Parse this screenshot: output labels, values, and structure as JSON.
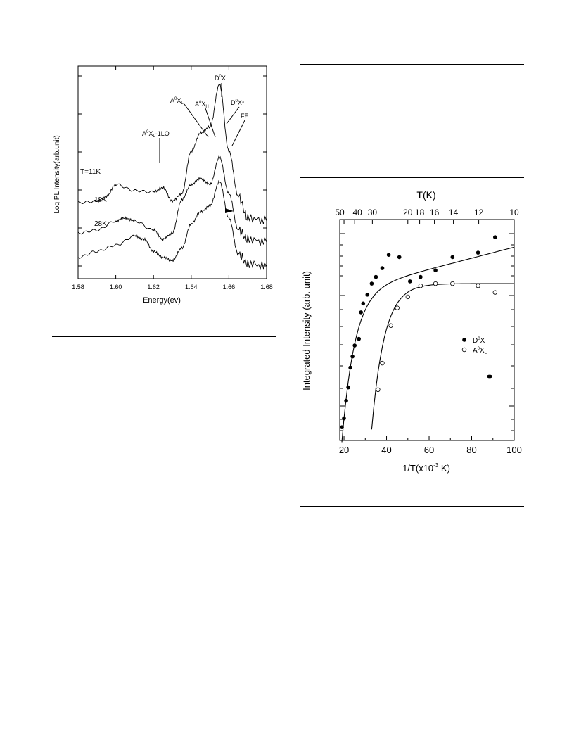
{
  "figure_left": {
    "ylabel": "Log PL Intensity(arb.unit)",
    "xlabel": "Energy(ev)",
    "xticks": [
      "1.58",
      "1.60",
      "1.62",
      "1.64",
      "1.66",
      "1.68"
    ],
    "peak_labels": [
      "D",
      "X",
      "0",
      "A",
      "X",
      "0",
      "L",
      "A",
      "X",
      "0",
      "H",
      "D",
      "X*",
      "0",
      "FE",
      "A",
      "X",
      "0",
      "L",
      "-1LO"
    ],
    "curve_labels": [
      "T=11K",
      "18K",
      "28K"
    ]
  },
  "figure_right": {
    "top_axis_label": "T(K)",
    "top_ticks": [
      "50",
      "40",
      "30",
      "20",
      "18",
      "16",
      "14",
      "12",
      "10"
    ],
    "ylabel": "Integrated Intensity (arb. unit)",
    "xlabel": "1/T(x10",
    "xlabel_sup": "-3",
    "xlabel_unit": " K)",
    "xticks": [
      "20",
      "40",
      "60",
      "80",
      "100"
    ],
    "legend": [
      {
        "symbol": "filled-circle",
        "label_main": "D",
        "label_sup": "0",
        "label_tail": "X"
      },
      {
        "symbol": "open-circle",
        "label_main": "A",
        "label_sup": "0",
        "label_tail": "X",
        "label_sub": "L"
      }
    ]
  },
  "chart_data": [
    {
      "type": "line",
      "title": "",
      "xlabel": "Energy(ev)",
      "ylabel": "Log PL Intensity(arb.unit)",
      "xlim": [
        1.58,
        1.68
      ],
      "x_ticks": [
        1.58,
        1.6,
        1.62,
        1.64,
        1.66,
        1.68
      ],
      "series": [
        {
          "name": "T=11K",
          "x": [
            1.58,
            1.59,
            1.595,
            1.6,
            1.61,
            1.62,
            1.625,
            1.63,
            1.635,
            1.64,
            1.645,
            1.65,
            1.655,
            1.66,
            1.665,
            1.67,
            1.68
          ],
          "y": [
            4.3,
            4.35,
            4.5,
            4.9,
            4.7,
            4.65,
            4.8,
            4.35,
            4.6,
            6.0,
            6.6,
            6.8,
            8.2,
            6.0,
            4.5,
            3.8,
            3.7
          ]
        },
        {
          "name": "18K",
          "x": [
            1.58,
            1.59,
            1.6,
            1.605,
            1.61,
            1.62,
            1.625,
            1.63,
            1.635,
            1.64,
            1.645,
            1.65,
            1.655,
            1.66,
            1.665,
            1.67,
            1.68
          ],
          "y": [
            3.3,
            3.4,
            3.7,
            3.8,
            3.7,
            3.4,
            3.1,
            3.3,
            4.4,
            4.9,
            5.1,
            4.9,
            5.8,
            4.6,
            3.4,
            3.1,
            3.0
          ]
        },
        {
          "name": "28K",
          "x": [
            1.58,
            1.59,
            1.6,
            1.61,
            1.615,
            1.62,
            1.625,
            1.63,
            1.635,
            1.64,
            1.645,
            1.65,
            1.655,
            1.66,
            1.665,
            1.67,
            1.68
          ],
          "y": [
            2.5,
            2.7,
            2.9,
            3.2,
            3.1,
            2.7,
            2.5,
            2.4,
            2.8,
            3.6,
            4.0,
            4.2,
            5.0,
            3.8,
            2.6,
            2.3,
            2.2
          ]
        }
      ]
    },
    {
      "type": "scatter",
      "title": "",
      "xlabel": "1/T(x10^-3 K)",
      "ylabel": "Integrated Intensity (arb. unit)",
      "xlim": [
        18,
        100
      ],
      "x_ticks": [
        20,
        40,
        60,
        80,
        100
      ],
      "ylim": [
        0,
        10
      ],
      "series": [
        {
          "name": "D0X",
          "marker": "filled",
          "x": [
            19,
            20,
            21,
            22,
            23,
            24,
            25,
            27,
            28,
            29,
            31,
            33,
            35,
            38,
            41,
            46,
            51,
            56,
            63,
            71,
            83,
            91
          ],
          "y": [
            0.6,
            1.0,
            1.8,
            2.4,
            3.3,
            3.8,
            4.3,
            4.6,
            5.8,
            6.2,
            6.6,
            7.1,
            7.4,
            7.8,
            8.4,
            8.3,
            7.2,
            7.4,
            7.7,
            8.3,
            8.5,
            9.2
          ]
        },
        {
          "name": "A0XL",
          "marker": "open",
          "x": [
            36,
            38,
            42,
            45,
            50,
            56,
            63,
            71,
            83,
            91
          ],
          "y": [
            2.3,
            3.5,
            5.2,
            6.0,
            6.5,
            7.0,
            7.1,
            7.1,
            7.0,
            6.7
          ]
        }
      ]
    }
  ]
}
